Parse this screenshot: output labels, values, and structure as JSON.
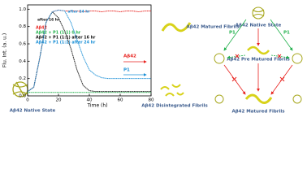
{
  "chart_data": {
    "type": "line",
    "xlabel": "Time (h)",
    "ylabel": "Flu. Int. (a. u.)",
    "x": [
      0,
      4,
      8,
      12,
      16,
      20,
      24,
      28,
      32,
      36,
      40,
      44,
      48,
      52,
      56,
      60,
      64,
      68,
      72,
      76,
      80
    ],
    "xlim": [
      0,
      80
    ],
    "xticks": [
      0,
      20,
      40,
      60,
      80
    ],
    "ylim": [
      0,
      1.05
    ],
    "yticks": [
      {
        "value": 0,
        "label": "0.0"
      },
      0.2,
      0.4,
      0.6,
      0.8,
      {
        "value": 1,
        "label": "1.0"
      }
    ],
    "series": [
      {
        "name": "Aβ42",
        "color": "#e8231f",
        "values": [
          0.05,
          0.1,
          0.45,
          0.85,
          0.97,
          0.99,
          0.98,
          0.98,
          0.98,
          0.97,
          0.98,
          0.98,
          0.97,
          0.98,
          0.98,
          0.97,
          0.98,
          0.98,
          0.97,
          0.98,
          0.98
        ]
      },
      {
        "name": "Aβ42 + P1 (1:1) 0 hr",
        "color": "#22b14c",
        "values": [
          0.04,
          0.04,
          0.04,
          0.04,
          0.04,
          0.04,
          0.04,
          0.04,
          0.04,
          0.04,
          0.04,
          0.04,
          0.04,
          0.04,
          0.04,
          0.04,
          0.04,
          0.04,
          0.04,
          0.04,
          0.04
        ]
      },
      {
        "name": "Aβ42 + P1 (1:1) after 16 hr",
        "color": "#111111",
        "values": [
          0.05,
          0.1,
          0.45,
          0.85,
          0.97,
          0.9,
          0.75,
          0.55,
          0.3,
          0.12,
          0.06,
          0.05,
          0.05,
          0.05,
          0.05,
          0.05,
          0.05,
          0.05,
          0.05,
          0.05,
          0.05
        ]
      },
      {
        "name": "Aβ42 + P1 (1:1) after 24 hr",
        "color": "#1a8fd6",
        "values": [
          0.05,
          0.1,
          0.45,
          0.85,
          0.97,
          0.99,
          0.98,
          0.85,
          0.65,
          0.45,
          0.3,
          0.24,
          0.21,
          0.2,
          0.2,
          0.2,
          0.2,
          0.2,
          0.2,
          0.2,
          0.2
        ]
      }
    ],
    "annotations": [
      "after 24 hr",
      "after 16 hr"
    ]
  },
  "diagram": {
    "left_native": "Aβ42 Native State",
    "matured": "Aβ42 Matured Fibrils",
    "disintegrated": "Aβ42 Disintegrated Fibrils",
    "arrow_abeta": "Aβ42",
    "arrow_p1": "P1",
    "right_native": "Aβ42 Native State",
    "right_prematured": "Aβ42 Pre Matured Fibrils",
    "right_matured": "Aβ42 Matured Fibrils",
    "right_p1_left": "P1",
    "right_p1_right": "P1"
  }
}
